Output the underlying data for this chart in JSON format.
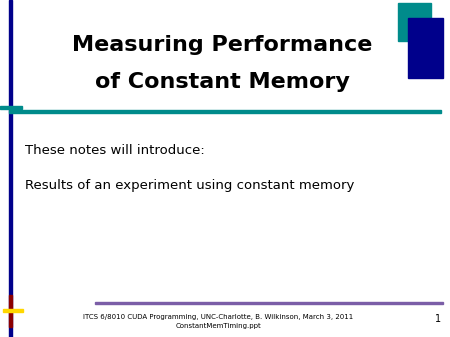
{
  "title_line1": "Measuring Performance",
  "title_line2": "of Constant Memory",
  "body_line1": "These notes will introduce:",
  "body_line2": "Results of an experiment using constant memory",
  "footer_text_line1": "ITCS 6/8010 CUDA Programming, UNC-Charlotte, B. Wilkinson, March 3, 2011",
  "footer_text_line2": "ConstantMemTiming.ppt",
  "page_number": "1",
  "bg_color": "#ffffff",
  "title_color": "#000000",
  "body_color": "#000000",
  "footer_color": "#000000",
  "left_bar_color": "#00008B",
  "teal_line_color": "#008B8B",
  "teal_box_color": "#008B8B",
  "dark_blue_box_color": "#00008B",
  "bottom_red_color": "#8B0000",
  "bottom_yellow_color": "#FFD700",
  "footer_line_color": "#7B5EA7"
}
